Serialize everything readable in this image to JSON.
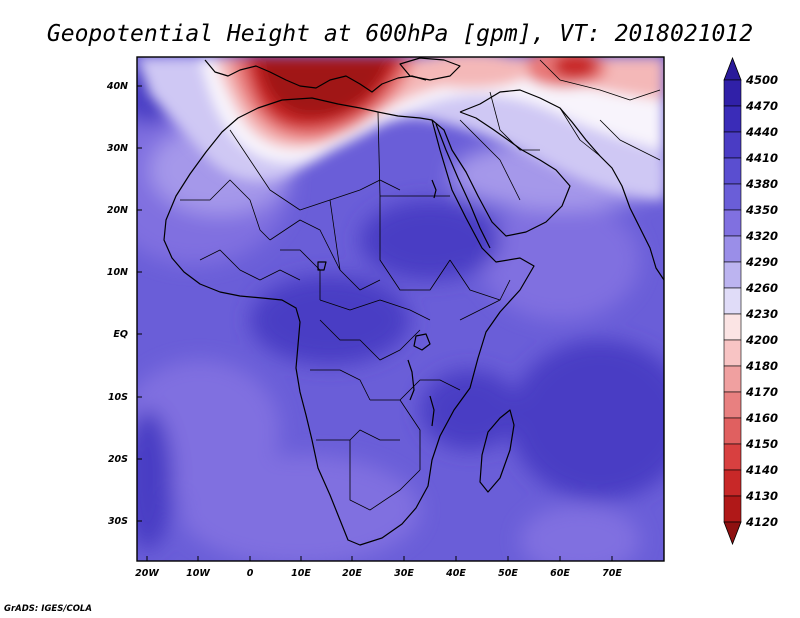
{
  "title": "Geopotential Height at 600hPa [gpm], VT: 2018021012",
  "credit": "GrADS: IGES/COLA",
  "lon_ticks": [
    "20W",
    "10W",
    "0",
    "10E",
    "20E",
    "30E",
    "40E",
    "50E",
    "60E",
    "70E"
  ],
  "lat_ticks": [
    "40N",
    "30N",
    "20N",
    "10N",
    "EQ",
    "10S",
    "20S",
    "30S"
  ],
  "colorbar": {
    "levels": [
      "4500",
      "4470",
      "4440",
      "4410",
      "4380",
      "4350",
      "4320",
      "4290",
      "4260",
      "4230",
      "4200",
      "4180",
      "4170",
      "4160",
      "4150",
      "4140",
      "4130",
      "4120"
    ],
    "colors": [
      "#2a1a9a",
      "#3020a8",
      "#3a2cb8",
      "#4a3cc4",
      "#5a4ed0",
      "#6a5ed8",
      "#8070e0",
      "#9a8ee8",
      "#bcb4f0",
      "#e0dcf8",
      "#fbe4e4",
      "#f8c4c4",
      "#f0a0a0",
      "#e88080",
      "#e06060",
      "#d84040",
      "#c82828",
      "#b01818",
      "#8e1010"
    ]
  },
  "field_colors": {
    "base": "#6a5ed8",
    "deep": "#4a3cc4",
    "mid": "#8070e0",
    "light": "#a598ea",
    "pale": "#cfc8f4",
    "white": "#f8f4fc",
    "pink": "#f4b8b8",
    "rose": "#e87878",
    "red": "#c82828",
    "dark_red": "#a01414"
  }
}
